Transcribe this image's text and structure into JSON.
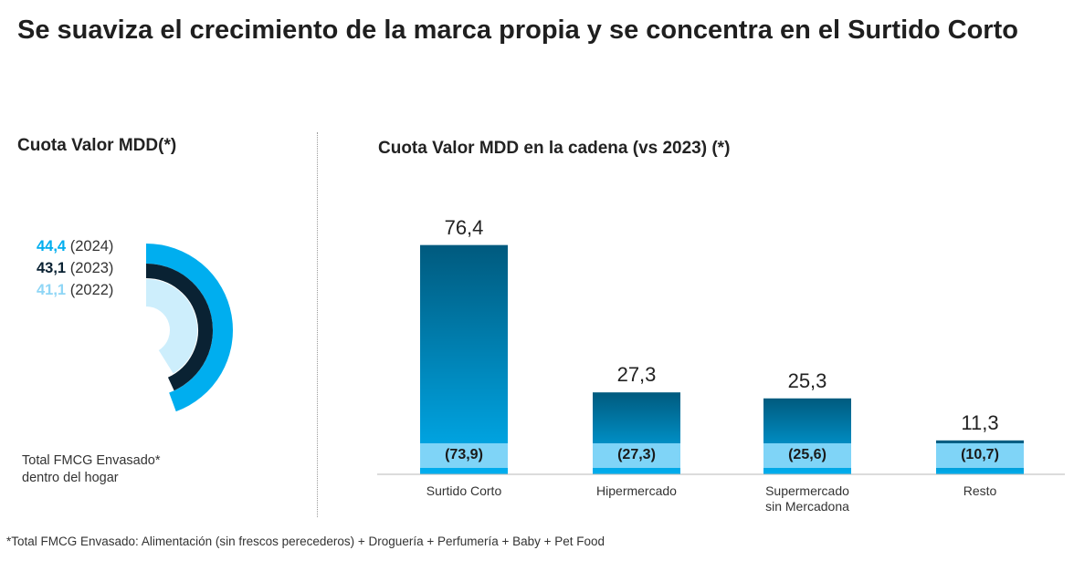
{
  "header": {
    "title": "Se suaviza el crecimiento de la marca propia y se concentra en el Surtido Corto"
  },
  "left_panel": {
    "title": "Cuota Valor MDD(*)",
    "footnote_line1": "Total FMCG Envasado*",
    "footnote_line2": "dentro del hogar"
  },
  "right_panel": {
    "title": "Cuota Valor MDD en la cadena (vs 2023) (*)"
  },
  "footnote": "*Total FMCG Envasado: Alimentación (sin frescos perecederos) + Droguería + Perfumería + Baby + Pet Food",
  "colors": {
    "y2024": "#00aeef",
    "y2023": "#0a2233",
    "y2022": "#cdeefc",
    "bar_top": "#005a7e",
    "bar_bottom": "#00aeef",
    "band": "#7fd4f7",
    "baseline": "#00aeef"
  },
  "chart_data": [
    {
      "type": "pie",
      "title": "Cuota Valor MDD(*)",
      "series": [
        {
          "name": "2024",
          "value": 44.4,
          "display": "44,4",
          "year_label": "(2024)"
        },
        {
          "name": "2023",
          "value": 43.1,
          "display": "43,1",
          "year_label": "(2023)"
        },
        {
          "name": "2022",
          "value": 41.1,
          "display": "41,1",
          "year_label": "(2022)"
        }
      ]
    },
    {
      "type": "bar",
      "title": "Cuota Valor MDD en la cadena (vs 2023) (*)",
      "categories": [
        "Surtido Corto",
        "Hipermercado",
        "Supermercado sin Mercadona",
        "Resto"
      ],
      "category_lines": [
        [
          "Surtido Corto"
        ],
        [
          "Hipermercado"
        ],
        [
          "Supermercado",
          "sin Mercadona"
        ],
        [
          "Resto"
        ]
      ],
      "values": [
        76.4,
        27.3,
        25.3,
        11.3
      ],
      "value_labels": [
        "76,4",
        "27,3",
        "25,3",
        "11,3"
      ],
      "prev_values": [
        73.9,
        27.3,
        25.6,
        10.7
      ],
      "prev_labels": [
        "(73,9)",
        "(27,3)",
        "(25,6)",
        "(10,7)"
      ],
      "ylim": [
        0,
        80
      ]
    }
  ]
}
